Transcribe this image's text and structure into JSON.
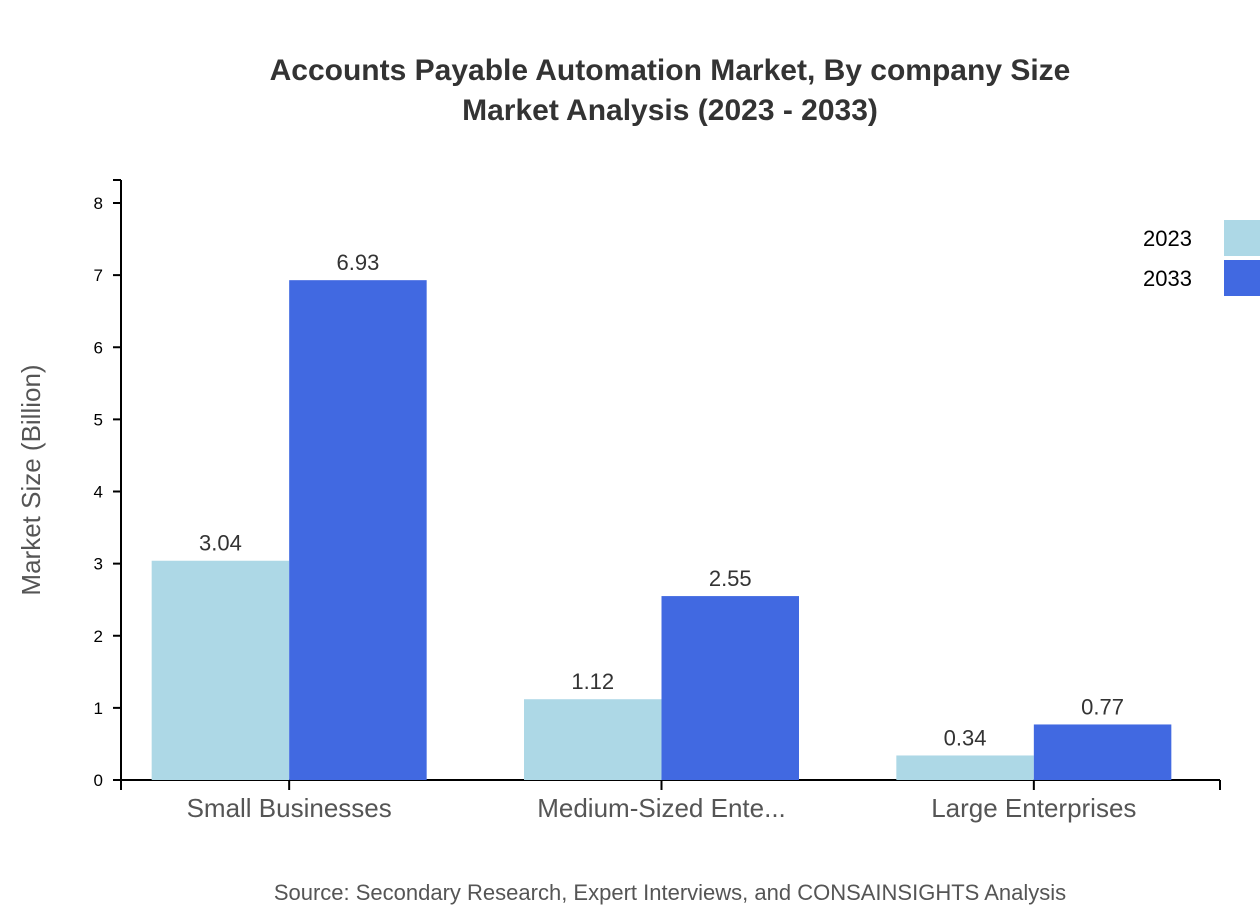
{
  "chart_data": {
    "type": "bar",
    "title": "Accounts Payable Automation Market, By company Size",
    "subtitle": "Market Analysis (2023 - 2033)",
    "xlabel": "",
    "ylabel": "Market Size (Billion)",
    "ylim": [
      0,
      8
    ],
    "yticks": [
      0,
      1,
      2,
      3,
      4,
      5,
      6,
      7,
      8
    ],
    "categories": [
      "Small Businesses",
      "Medium-Sized Ente...",
      "Large Enterprises"
    ],
    "series": [
      {
        "name": "2023",
        "color": "#add8e6",
        "values": [
          3.04,
          1.12,
          0.34
        ]
      },
      {
        "name": "2033",
        "color": "#4169e1",
        "values": [
          6.93,
          2.55,
          0.77
        ]
      }
    ],
    "grid": false,
    "legend": "top-right",
    "source": "Source: Secondary Research, Expert Interviews, and CONSAINSIGHTS Analysis"
  }
}
